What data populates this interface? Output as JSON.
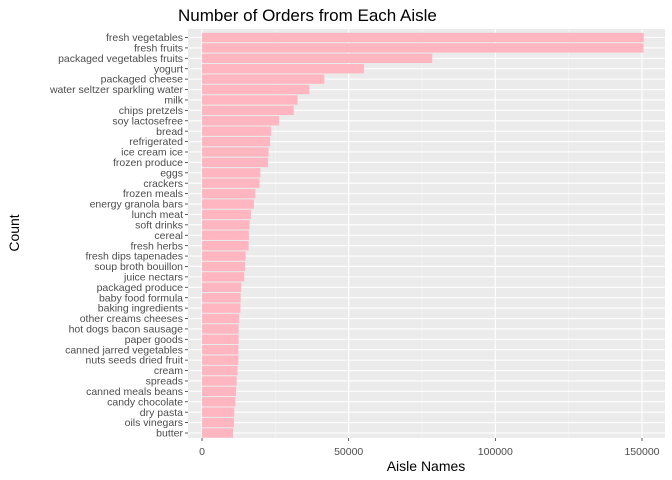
{
  "chart_data": {
    "type": "bar",
    "orientation": "horizontal",
    "title": "Number of Orders from Each Aisle",
    "xlabel": "Aisle Names",
    "ylabel": "Count",
    "xlim": [
      0,
      156000
    ],
    "x_ticks": [
      0,
      50000,
      100000,
      150000
    ],
    "x_tick_labels": [
      "0",
      "50000",
      "100000",
      "150000"
    ],
    "grid": true,
    "bar_color": "#FFB6C1",
    "panel_color": "#EBEBEB",
    "categories": [
      "fresh vegetables",
      "fresh fruits",
      "packaged vegetables fruits",
      "yogurt",
      "packaged cheese",
      "water seltzer sparkling water",
      "milk",
      "chips pretzels",
      "soy lactosefree",
      "bread",
      "refrigerated",
      "ice cream ice",
      "frozen produce",
      "eggs",
      "crackers",
      "frozen meals",
      "energy granola bars",
      "lunch meat",
      "soft drinks",
      "cereal",
      "fresh herbs",
      "fresh dips tapenades",
      "soup broth bouillon",
      "juice nectars",
      "packaged produce",
      "baby food formula",
      "baking ingredients",
      "other creams cheeses",
      "hot dogs bacon sausage",
      "paper goods",
      "canned jarred vegetables",
      "nuts seeds dried fruit",
      "cream",
      "spreads",
      "canned meals beans",
      "candy chocolate",
      "dry pasta",
      "oils vinegars",
      "butter"
    ],
    "values": [
      150600,
      150500,
      78500,
      55200,
      41700,
      36600,
      32600,
      31300,
      26300,
      23600,
      23200,
      22700,
      22500,
      19900,
      19600,
      18200,
      17700,
      16700,
      16200,
      16000,
      15900,
      14900,
      14700,
      14400,
      13400,
      13200,
      13100,
      12700,
      12500,
      12500,
      12400,
      12400,
      12100,
      11800,
      11600,
      11400,
      11000,
      10900,
      10600
    ]
  }
}
